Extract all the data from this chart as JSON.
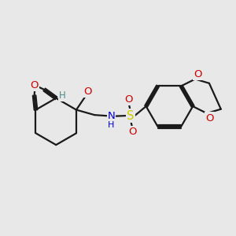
{
  "bg_color": "#e8e8e8",
  "bond_color": "#1a1a1a",
  "bond_width": 1.6,
  "atom_colors": {
    "O": "#cc0000",
    "N": "#0000cc",
    "S": "#cccc00",
    "H_label": "#4a8a8a",
    "C": "#1a1a1a"
  },
  "font_size_atom": 8.5,
  "fig_bg": "#e8e8e8"
}
